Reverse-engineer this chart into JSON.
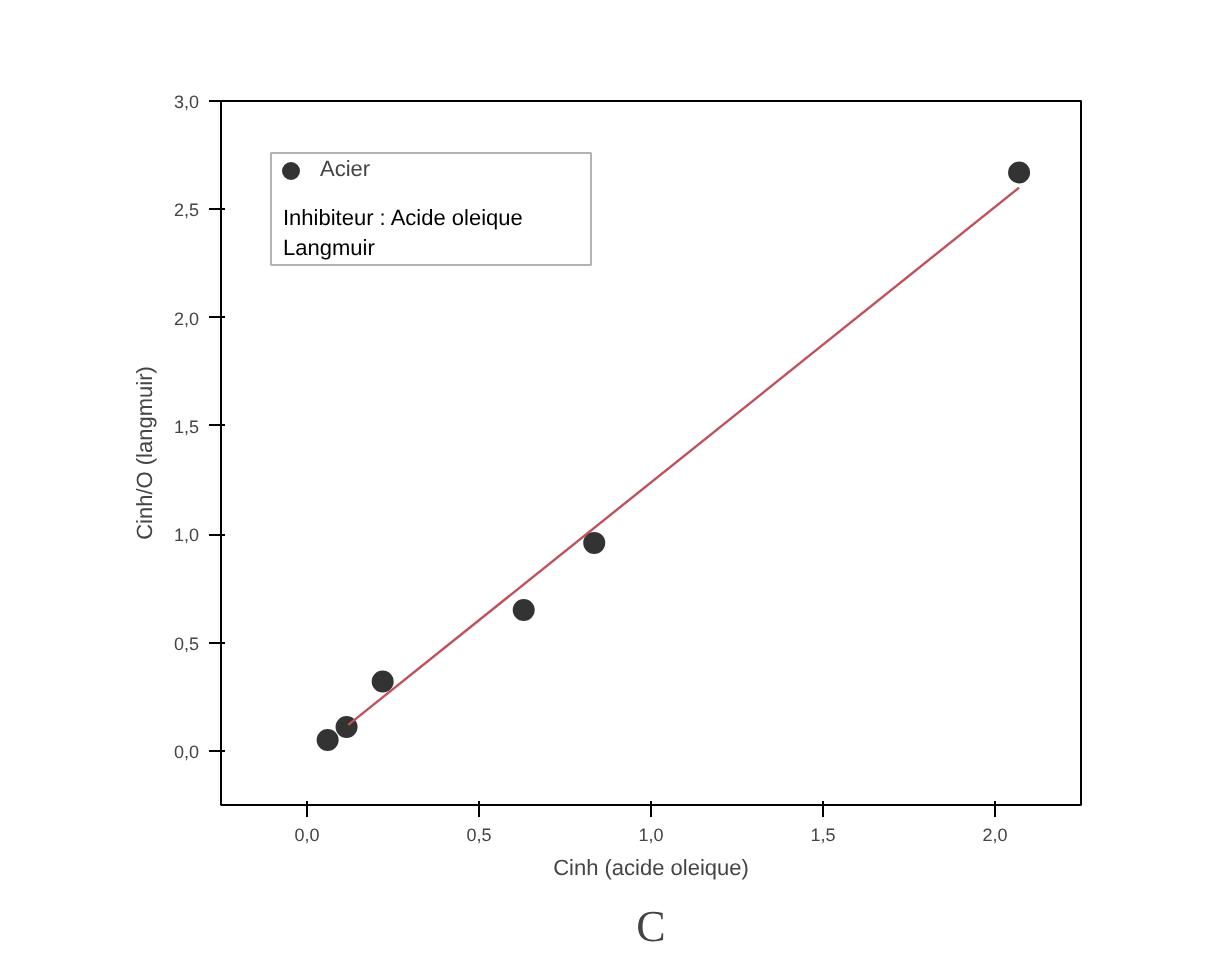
{
  "chart_data": {
    "type": "scatter",
    "xlabel": "Cinh (acide oleique)",
    "ylabel": "Cinh/O (langmuir)",
    "annotations": [
      "Inhibiteur : Acide oleique",
      "Langmuir",
      "C"
    ],
    "xlim": [
      -0.25,
      2.25
    ],
    "ylim": [
      -0.25,
      3.0
    ],
    "xticks": [
      {
        "value": 0,
        "label": "0,0"
      },
      {
        "value": 0.5,
        "label": "0,5"
      },
      {
        "value": 1,
        "label": "1,0"
      },
      {
        "value": 1.5,
        "label": "1,5"
      },
      {
        "value": 2,
        "label": "2,0"
      }
    ],
    "yticks": [
      {
        "value": 0,
        "label": "0,0"
      },
      {
        "value": 0.5,
        "label": "0,5"
      },
      {
        "value": 1,
        "label": "1,0"
      },
      {
        "value": 1.5,
        "label": "1,5"
      },
      {
        "value": 2,
        "label": "2,0"
      },
      {
        "value": 2.5,
        "label": "2,5"
      },
      {
        "value": 3,
        "label": "3,0"
      }
    ],
    "grid": false,
    "legend": "top left",
    "marker": "circle",
    "series": [
      {
        "name": "Acier",
        "color": "#333333",
        "x": [
          0.06,
          0.115,
          0.22,
          0.63,
          0.835,
          2.07
        ],
        "values": [
          0.05,
          0.11,
          0.32,
          0.65,
          0.96,
          2.67
        ]
      },
      {
        "type": "line",
        "color": "#c0505a",
        "marker": "none",
        "x": [
          0.12,
          2.07
        ],
        "values": [
          0.12,
          2.6
        ]
      }
    ]
  }
}
